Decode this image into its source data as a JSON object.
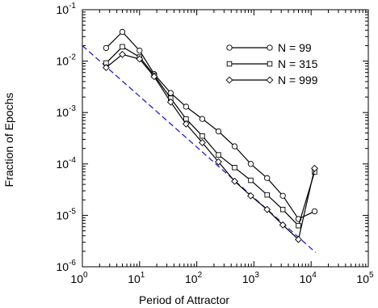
{
  "chart_data": {
    "type": "line",
    "xscale": "log",
    "yscale": "log",
    "xlim": [
      1,
      100000
    ],
    "ylim": [
      1e-06,
      0.1
    ],
    "xlabel": "Period of Attractor",
    "ylabel": "Fraction of Epochs",
    "grid": false,
    "legend_position": "top-right",
    "x_ticks": [
      {
        "value": 1,
        "base": "10",
        "exp": "0"
      },
      {
        "value": 10,
        "base": "10",
        "exp": "1"
      },
      {
        "value": 100,
        "base": "10",
        "exp": "2"
      },
      {
        "value": 1000,
        "base": "10",
        "exp": "3"
      },
      {
        "value": 10000,
        "base": "10",
        "exp": "4"
      },
      {
        "value": 100000,
        "base": "10",
        "exp": "5"
      }
    ],
    "y_ticks": [
      {
        "value": 1e-06,
        "base": "10",
        "exp": "-6"
      },
      {
        "value": 1e-05,
        "base": "10",
        "exp": "-5"
      },
      {
        "value": 0.0001,
        "base": "10",
        "exp": "-4"
      },
      {
        "value": 0.001,
        "base": "10",
        "exp": "-3"
      },
      {
        "value": 0.01,
        "base": "10",
        "exp": "-2"
      },
      {
        "value": 0.1,
        "base": "10",
        "exp": "-1"
      }
    ],
    "series": [
      {
        "name": "N = 99",
        "marker": "circle",
        "color": "#000000",
        "points": [
          [
            2.6,
            0.018
          ],
          [
            5,
            0.037
          ],
          [
            10,
            0.016
          ],
          [
            18,
            0.0056
          ],
          [
            35,
            0.0024
          ],
          [
            65,
            0.0013
          ],
          [
            125,
            0.00075
          ],
          [
            240,
            0.00043
          ],
          [
            460,
            0.00022
          ],
          [
            880,
            0.0001
          ],
          [
            1700,
            5.3e-05
          ],
          [
            3200,
            2.4e-05
          ],
          [
            6000,
            8.5e-06
          ],
          [
            11500,
            1.2e-05
          ]
        ]
      },
      {
        "name": "N = 315",
        "marker": "square",
        "color": "#000000",
        "points": [
          [
            2.6,
            0.0092
          ],
          [
            5,
            0.019
          ],
          [
            10,
            0.012
          ],
          [
            18,
            0.0053
          ],
          [
            35,
            0.0019
          ],
          [
            65,
            0.00075
          ],
          [
            125,
            0.00035
          ],
          [
            240,
            0.00015
          ],
          [
            460,
            8.5e-05
          ],
          [
            880,
            4.8e-05
          ],
          [
            1700,
            2.5e-05
          ],
          [
            3200,
            1.3e-05
          ],
          [
            6000,
            6.3e-06
          ],
          [
            11500,
            7e-05
          ]
        ]
      },
      {
        "name": "N = 999",
        "marker": "diamond",
        "color": "#000000",
        "points": [
          [
            2.6,
            0.0075
          ],
          [
            5,
            0.0135
          ],
          [
            10,
            0.011
          ],
          [
            18,
            0.005
          ],
          [
            35,
            0.0016
          ],
          [
            65,
            0.0006
          ],
          [
            125,
            0.00026
          ],
          [
            240,
            0.00011
          ],
          [
            460,
            4.6e-05
          ],
          [
            880,
            2.4e-05
          ],
          [
            1700,
            1.3e-05
          ],
          [
            3200,
            6.5e-06
          ],
          [
            6000,
            3.4e-06
          ],
          [
            11500,
            8.2e-05
          ]
        ]
      }
    ],
    "reference_line": {
      "style": "dashed",
      "color": "#1f1fc8",
      "points": [
        [
          1,
          0.02
        ],
        [
          12000,
          1.9e-06
        ]
      ]
    }
  }
}
